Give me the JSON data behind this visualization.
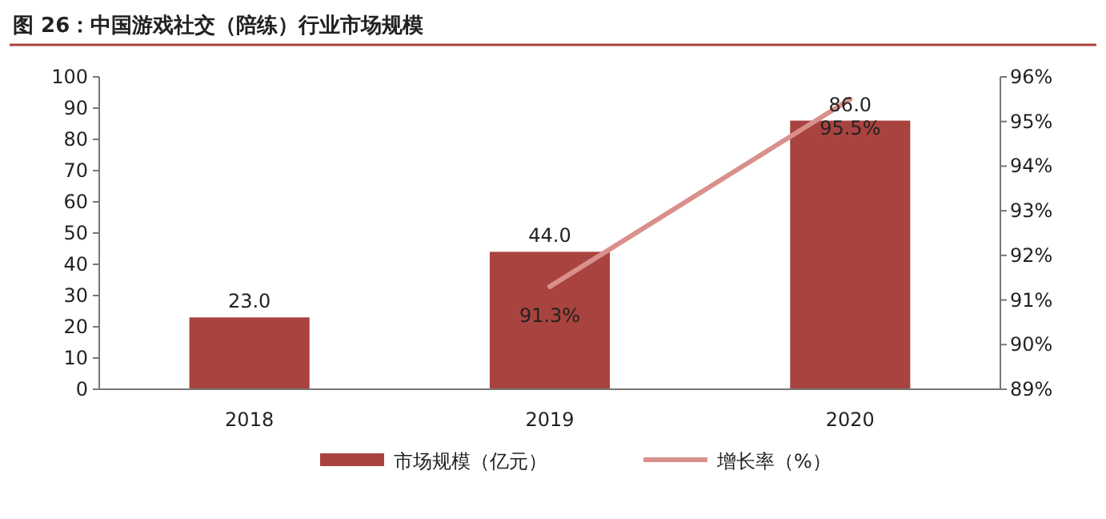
{
  "chart_data": {
    "type": "bar",
    "title": "图 26：中国游戏社交（陪练）行业市场规模",
    "categories": [
      "2018",
      "2019",
      "2020"
    ],
    "series": [
      {
        "name": "市场规模（亿元）",
        "color": "#a9433f",
        "values": [
          23,
          44,
          86
        ],
        "value_labels": [
          "23.0",
          "44.0",
          "86.0"
        ]
      },
      {
        "name": "增长率（%）",
        "type": "line",
        "axis": "y2",
        "color": "#d9908c",
        "values": [
          null,
          91.3,
          95.5
        ],
        "value_labels": [
          null,
          "91.3%",
          "95.5%"
        ]
      }
    ],
    "ylim": [
      0,
      100
    ],
    "yticks": [
      0,
      10,
      20,
      30,
      40,
      50,
      60,
      70,
      80,
      90,
      100
    ],
    "y2lim": [
      89,
      96
    ],
    "y2ticks": [
      {
        "value": 89,
        "label": "89%"
      },
      {
        "value": 90,
        "label": "90%"
      },
      {
        "value": 91,
        "label": "91%"
      },
      {
        "value": 92,
        "label": "92%"
      },
      {
        "value": 93,
        "label": "93%"
      },
      {
        "value": 94,
        "label": "94%"
      },
      {
        "value": 95,
        "label": "95%"
      },
      {
        "value": 96,
        "label": "96%"
      }
    ],
    "legend": "bottom",
    "grid": false
  }
}
